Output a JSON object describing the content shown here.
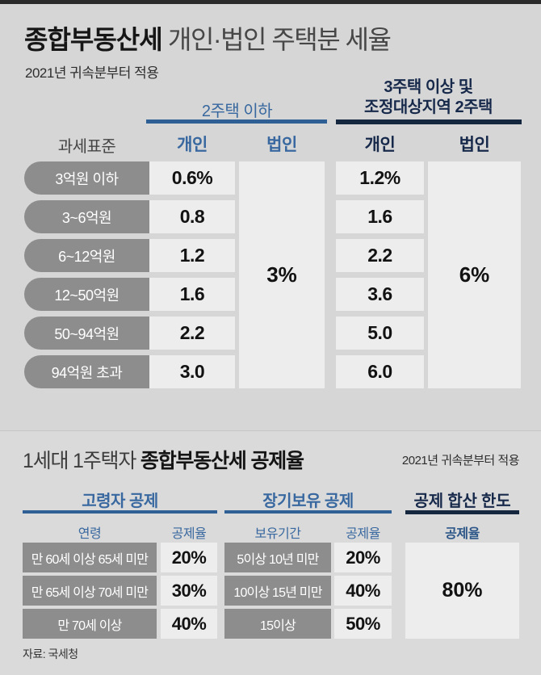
{
  "colors": {
    "background": "#d6d6d6",
    "accent_blue": "#38689f",
    "accent_navy": "#17294a",
    "label_gray": "#8d8d8d",
    "cell_bg": "#ededed"
  },
  "section1": {
    "title_bold": "종합부동산세",
    "title_rest": " 개인·법인 주택분 세율",
    "subtitle": "2021년 귀속분부터 적용",
    "group1_label": "2주택 이하",
    "group2_label_line1": "3주택 이상 및",
    "group2_label_line2": "조정대상지역 2주택",
    "col_tax_base": "과세표준",
    "col_individual_1": "개인",
    "col_corporate_1": "법인",
    "col_individual_2": "개인",
    "col_corporate_2": "법인",
    "corporate1_rate": "3%",
    "corporate2_rate": "6%",
    "chart_data": {
      "type": "table",
      "title": "종합부동산세 개인·법인 주택분 세율",
      "columns": [
        "과세표준",
        "2주택 이하 개인",
        "2주택 이하 법인",
        "3주택 이상 및 조정대상지역 2주택 개인",
        "3주택 이상 및 조정대상지역 2주택 법인"
      ],
      "rows_values": [
        [
          "3억원 이하",
          0.6,
          3,
          1.2,
          6
        ],
        [
          "3~6억원",
          0.8,
          3,
          1.6,
          6
        ],
        [
          "6~12억원",
          1.2,
          3,
          2.2,
          6
        ],
        [
          "12~50억원",
          1.6,
          3,
          3.6,
          6
        ],
        [
          "50~94억원",
          2.2,
          3,
          5.0,
          6
        ],
        [
          "94억원 초과",
          3.0,
          3,
          6.0,
          6
        ]
      ],
      "unit": "%"
    },
    "rows": [
      {
        "label": "3억원 이하",
        "ind1": "0.6%",
        "ind2": "1.2%"
      },
      {
        "label": "3~6억원",
        "ind1": "0.8",
        "ind2": "1.6"
      },
      {
        "label": "6~12억원",
        "ind1": "1.2",
        "ind2": "2.2"
      },
      {
        "label": "12~50억원",
        "ind1": "1.6",
        "ind2": "3.6"
      },
      {
        "label": "50~94억원",
        "ind1": "2.2",
        "ind2": "5.0"
      },
      {
        "label": "94억원 초과",
        "ind1": "3.0",
        "ind2": "6.0"
      }
    ]
  },
  "section2": {
    "title_regular": "1세대 1주택자 ",
    "title_bold": "종합부동산세 공제율",
    "subtitle": "2021년 귀속분부터 적용",
    "group_age": "고령자 공제",
    "group_holding": "장기보유 공제",
    "group_limit": "공제 합산 한도",
    "col_age": "연령",
    "col_age_rate": "공제율",
    "col_period": "보유기간",
    "col_period_rate": "공제율",
    "col_limit_rate": "공제율",
    "limit_value": "80%",
    "chart_data": {
      "type": "table",
      "title": "1세대 1주택자 종합부동산세 공제율",
      "age_deduction": [
        {
          "연령": "만 60세 이상 65세 미만",
          "공제율": 20
        },
        {
          "연령": "만 65세 이상 70세 미만",
          "공제율": 30
        },
        {
          "연령": "만 70세 이상",
          "공제율": 40
        }
      ],
      "holding_deduction": [
        {
          "보유기간": "5이상 10년 미만",
          "공제율": 20
        },
        {
          "보유기간": "10이상 15년 미만",
          "공제율": 40
        },
        {
          "보유기간": "15이상",
          "공제율": 50
        }
      ],
      "combined_limit_percent": 80,
      "unit": "%"
    },
    "age_rows": [
      {
        "label": "만 60세 이상 65세 미만",
        "value": "20%"
      },
      {
        "label": "만 65세 이상 70세 미만",
        "value": "30%"
      },
      {
        "label": "만 70세 이상",
        "value": "40%"
      }
    ],
    "holding_rows": [
      {
        "label": "5이상 10년 미만",
        "value": "20%"
      },
      {
        "label": "10이상 15년 미만",
        "value": "40%"
      },
      {
        "label": "15이상",
        "value": "50%"
      }
    ]
  },
  "footer": {
    "source": "자료: 국세청"
  }
}
